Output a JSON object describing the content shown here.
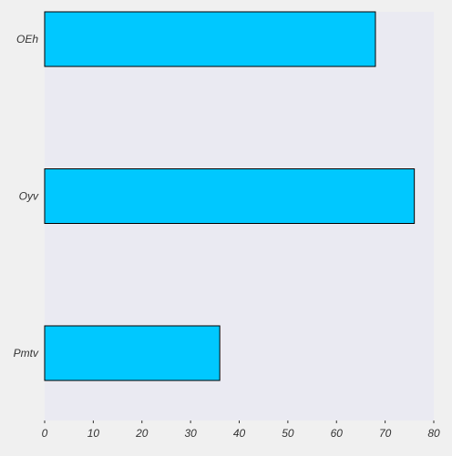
{
  "chart_data": {
    "type": "bar",
    "orientation": "horizontal",
    "categories": [
      "OEh",
      "Oyv",
      "Pmtv"
    ],
    "values": [
      68,
      76,
      36
    ],
    "title": "",
    "xlabel": "",
    "ylabel": "",
    "xlim": [
      0,
      80
    ],
    "xticks": [
      0,
      10,
      20,
      30,
      40,
      50,
      60,
      70,
      80
    ],
    "grid": false,
    "legend": "none",
    "colors": {
      "page_background": "#f0f0f0",
      "plot_background": "#eaeaf2",
      "bar_fill": "#00c8ff",
      "bar_edge": "#000000",
      "text": "#333333"
    }
  }
}
